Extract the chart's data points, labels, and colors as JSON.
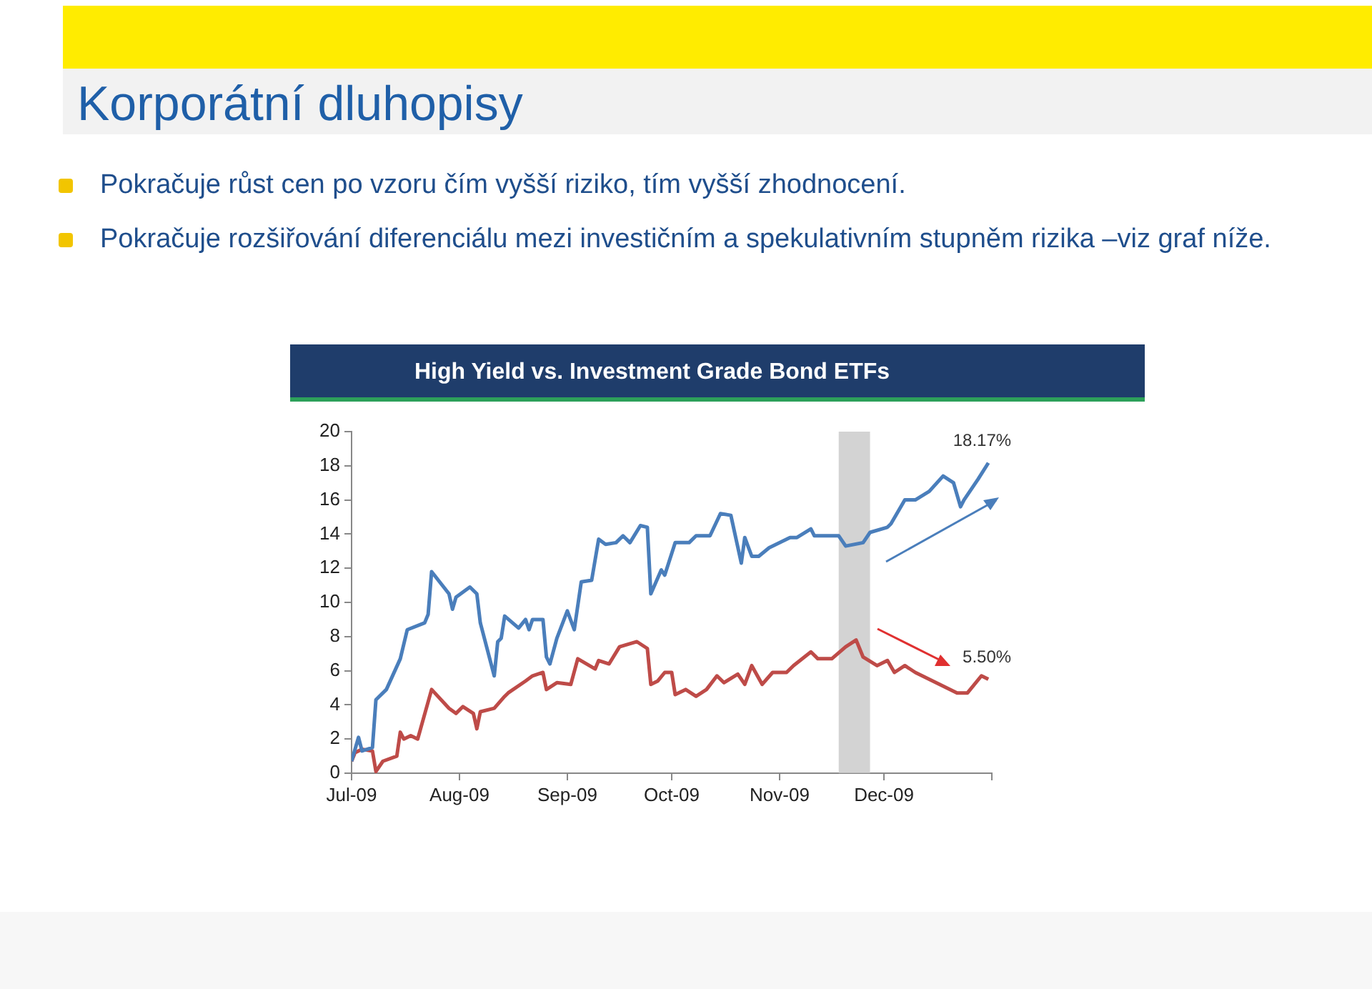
{
  "chart_data": {
    "type": "line",
    "title": "High Yield vs. Investment Grade Bond ETFs",
    "annotations": [
      "Korporátní dluhopisy",
      "Pokračuje růst cen po vzoru čím vyšší riziko, tím vyšší zhodnocení.",
      "Pokračuje rozšiřování diferenciálu mezi investičním a spekulativním stupněm rizika –viz graf níže.",
      {
        "text": "18.17%",
        "x": "2009-12-31",
        "y": 18.17
      },
      {
        "text": "5.50%",
        "x": "2009-12-31",
        "y": 5.5
      }
    ],
    "series": [
      {
        "color": "#4a7ebb",
        "x": [
          "2009-07-01",
          "2009-07-03",
          "2009-07-04",
          "2009-07-07",
          "2009-07-08",
          "2009-07-11",
          "2009-07-15",
          "2009-07-17",
          "2009-07-22",
          "2009-07-23",
          "2009-07-24",
          "2009-07-29",
          "2009-07-30",
          "2009-07-31",
          "2009-08-04",
          "2009-08-06",
          "2009-08-07",
          "2009-08-11",
          "2009-08-12",
          "2009-08-13",
          "2009-08-14",
          "2009-08-18",
          "2009-08-20",
          "2009-08-21",
          "2009-08-22",
          "2009-08-25",
          "2009-08-26",
          "2009-08-27",
          "2009-08-29",
          "2009-09-01",
          "2009-09-03",
          "2009-09-05",
          "2009-09-08",
          "2009-09-10",
          "2009-09-12",
          "2009-09-15",
          "2009-09-17",
          "2009-09-19",
          "2009-09-22",
          "2009-09-24",
          "2009-09-25",
          "2009-09-28",
          "2009-09-29",
          "2009-10-02",
          "2009-10-06",
          "2009-10-08",
          "2009-10-12",
          "2009-10-15",
          "2009-10-18",
          "2009-10-21",
          "2009-10-22",
          "2009-10-24",
          "2009-10-26",
          "2009-10-29",
          "2009-11-04",
          "2009-11-06",
          "2009-11-10",
          "2009-11-11",
          "2009-11-18",
          "2009-11-20",
          "2009-11-25",
          "2009-11-27",
          "2009-12-02",
          "2009-12-03",
          "2009-12-07",
          "2009-12-10",
          "2009-12-14",
          "2009-12-18",
          "2009-12-21",
          "2009-12-23",
          "2009-12-24",
          "2009-12-28",
          "2009-12-31"
        ],
        "values": [
          0.7,
          2.1,
          1.3,
          1.5,
          4.3,
          4.9,
          6.7,
          8.4,
          8.8,
          9.3,
          11.8,
          10.5,
          9.6,
          10.3,
          10.9,
          10.5,
          8.8,
          5.7,
          7.7,
          7.9,
          9.2,
          8.5,
          9.0,
          8.4,
          9.0,
          9.0,
          6.8,
          6.4,
          7.9,
          9.5,
          8.4,
          11.2,
          11.3,
          13.7,
          13.4,
          13.5,
          13.9,
          13.5,
          14.5,
          14.4,
          10.5,
          11.9,
          11.6,
          13.5,
          13.5,
          13.9,
          13.9,
          15.2,
          15.1,
          12.3,
          13.8,
          12.7,
          12.7,
          13.2,
          13.8,
          13.8,
          14.3,
          13.9,
          13.9,
          13.3,
          13.5,
          14.1,
          14.4,
          14.6,
          16.0,
          16.0,
          16.5,
          17.4,
          17.0,
          15.6,
          16.0,
          17.2,
          18.17
        ]
      },
      {
        "color": "#be4b48",
        "x": [
          "2009-07-01",
          "2009-07-02",
          "2009-07-04",
          "2009-07-07",
          "2009-07-08",
          "2009-07-10",
          "2009-07-14",
          "2009-07-15",
          "2009-07-16",
          "2009-07-18",
          "2009-07-20",
          "2009-07-24",
          "2009-07-29",
          "2009-07-31",
          "2009-08-02",
          "2009-08-05",
          "2009-08-06",
          "2009-08-07",
          "2009-08-11",
          "2009-08-14",
          "2009-08-15",
          "2009-08-20",
          "2009-08-22",
          "2009-08-25",
          "2009-08-26",
          "2009-08-29",
          "2009-09-02",
          "2009-09-04",
          "2009-09-09",
          "2009-09-10",
          "2009-09-13",
          "2009-09-16",
          "2009-09-21",
          "2009-09-24",
          "2009-09-25",
          "2009-09-27",
          "2009-09-29",
          "2009-10-01",
          "2009-10-02",
          "2009-10-05",
          "2009-10-08",
          "2009-10-11",
          "2009-10-14",
          "2009-10-16",
          "2009-10-20",
          "2009-10-22",
          "2009-10-24",
          "2009-10-27",
          "2009-10-30",
          "2009-11-03",
          "2009-11-05",
          "2009-11-10",
          "2009-11-12",
          "2009-11-16",
          "2009-11-20",
          "2009-11-23",
          "2009-11-25",
          "2009-11-29",
          "2009-12-02",
          "2009-12-04",
          "2009-12-07",
          "2009-12-10",
          "2009-12-17",
          "2009-12-22",
          "2009-12-25",
          "2009-12-29",
          "2009-12-31"
        ],
        "values": [
          0.7,
          1.2,
          1.4,
          1.3,
          0.1,
          0.7,
          1.0,
          2.4,
          2.0,
          2.2,
          2.0,
          4.9,
          3.8,
          3.5,
          3.9,
          3.5,
          2.6,
          3.6,
          3.8,
          4.5,
          4.7,
          5.4,
          5.7,
          5.9,
          4.9,
          5.3,
          5.2,
          6.7,
          6.1,
          6.6,
          6.4,
          7.4,
          7.7,
          7.3,
          5.2,
          5.4,
          5.9,
          5.9,
          4.6,
          4.9,
          4.5,
          4.9,
          5.7,
          5.3,
          5.8,
          5.2,
          6.3,
          5.2,
          5.9,
          5.9,
          6.3,
          7.1,
          6.7,
          6.7,
          7.4,
          7.8,
          6.8,
          6.3,
          6.6,
          5.9,
          6.3,
          5.9,
          5.2,
          4.7,
          4.7,
          5.7,
          5.5
        ]
      }
    ],
    "xlim": [
      "2009-07-01",
      "2010-01-01"
    ],
    "xticks": [
      {
        "value": "2009-07-01",
        "label": "Jul-09"
      },
      {
        "value": "2009-08-01",
        "label": "Aug-09"
      },
      {
        "value": "2009-09-01",
        "label": "Sep-09"
      },
      {
        "value": "2009-10-01",
        "label": "Oct-09"
      },
      {
        "value": "2009-11-01",
        "label": "Nov-09"
      },
      {
        "value": "2009-12-01",
        "label": "Dec-09"
      },
      {
        "value": "2010-01-01",
        "label": null
      }
    ],
    "ylim": [
      0,
      20
    ],
    "yticks": [
      0,
      2,
      4,
      6,
      8,
      10,
      12,
      14,
      16,
      18,
      20
    ],
    "bands": [
      {
        "axis": "x",
        "from": "2009-11-18",
        "to": "2009-11-27",
        "color": "#c8c8c8"
      }
    ],
    "grid": false,
    "legend": false,
    "marker": "none",
    "line_style": "solid"
  }
}
